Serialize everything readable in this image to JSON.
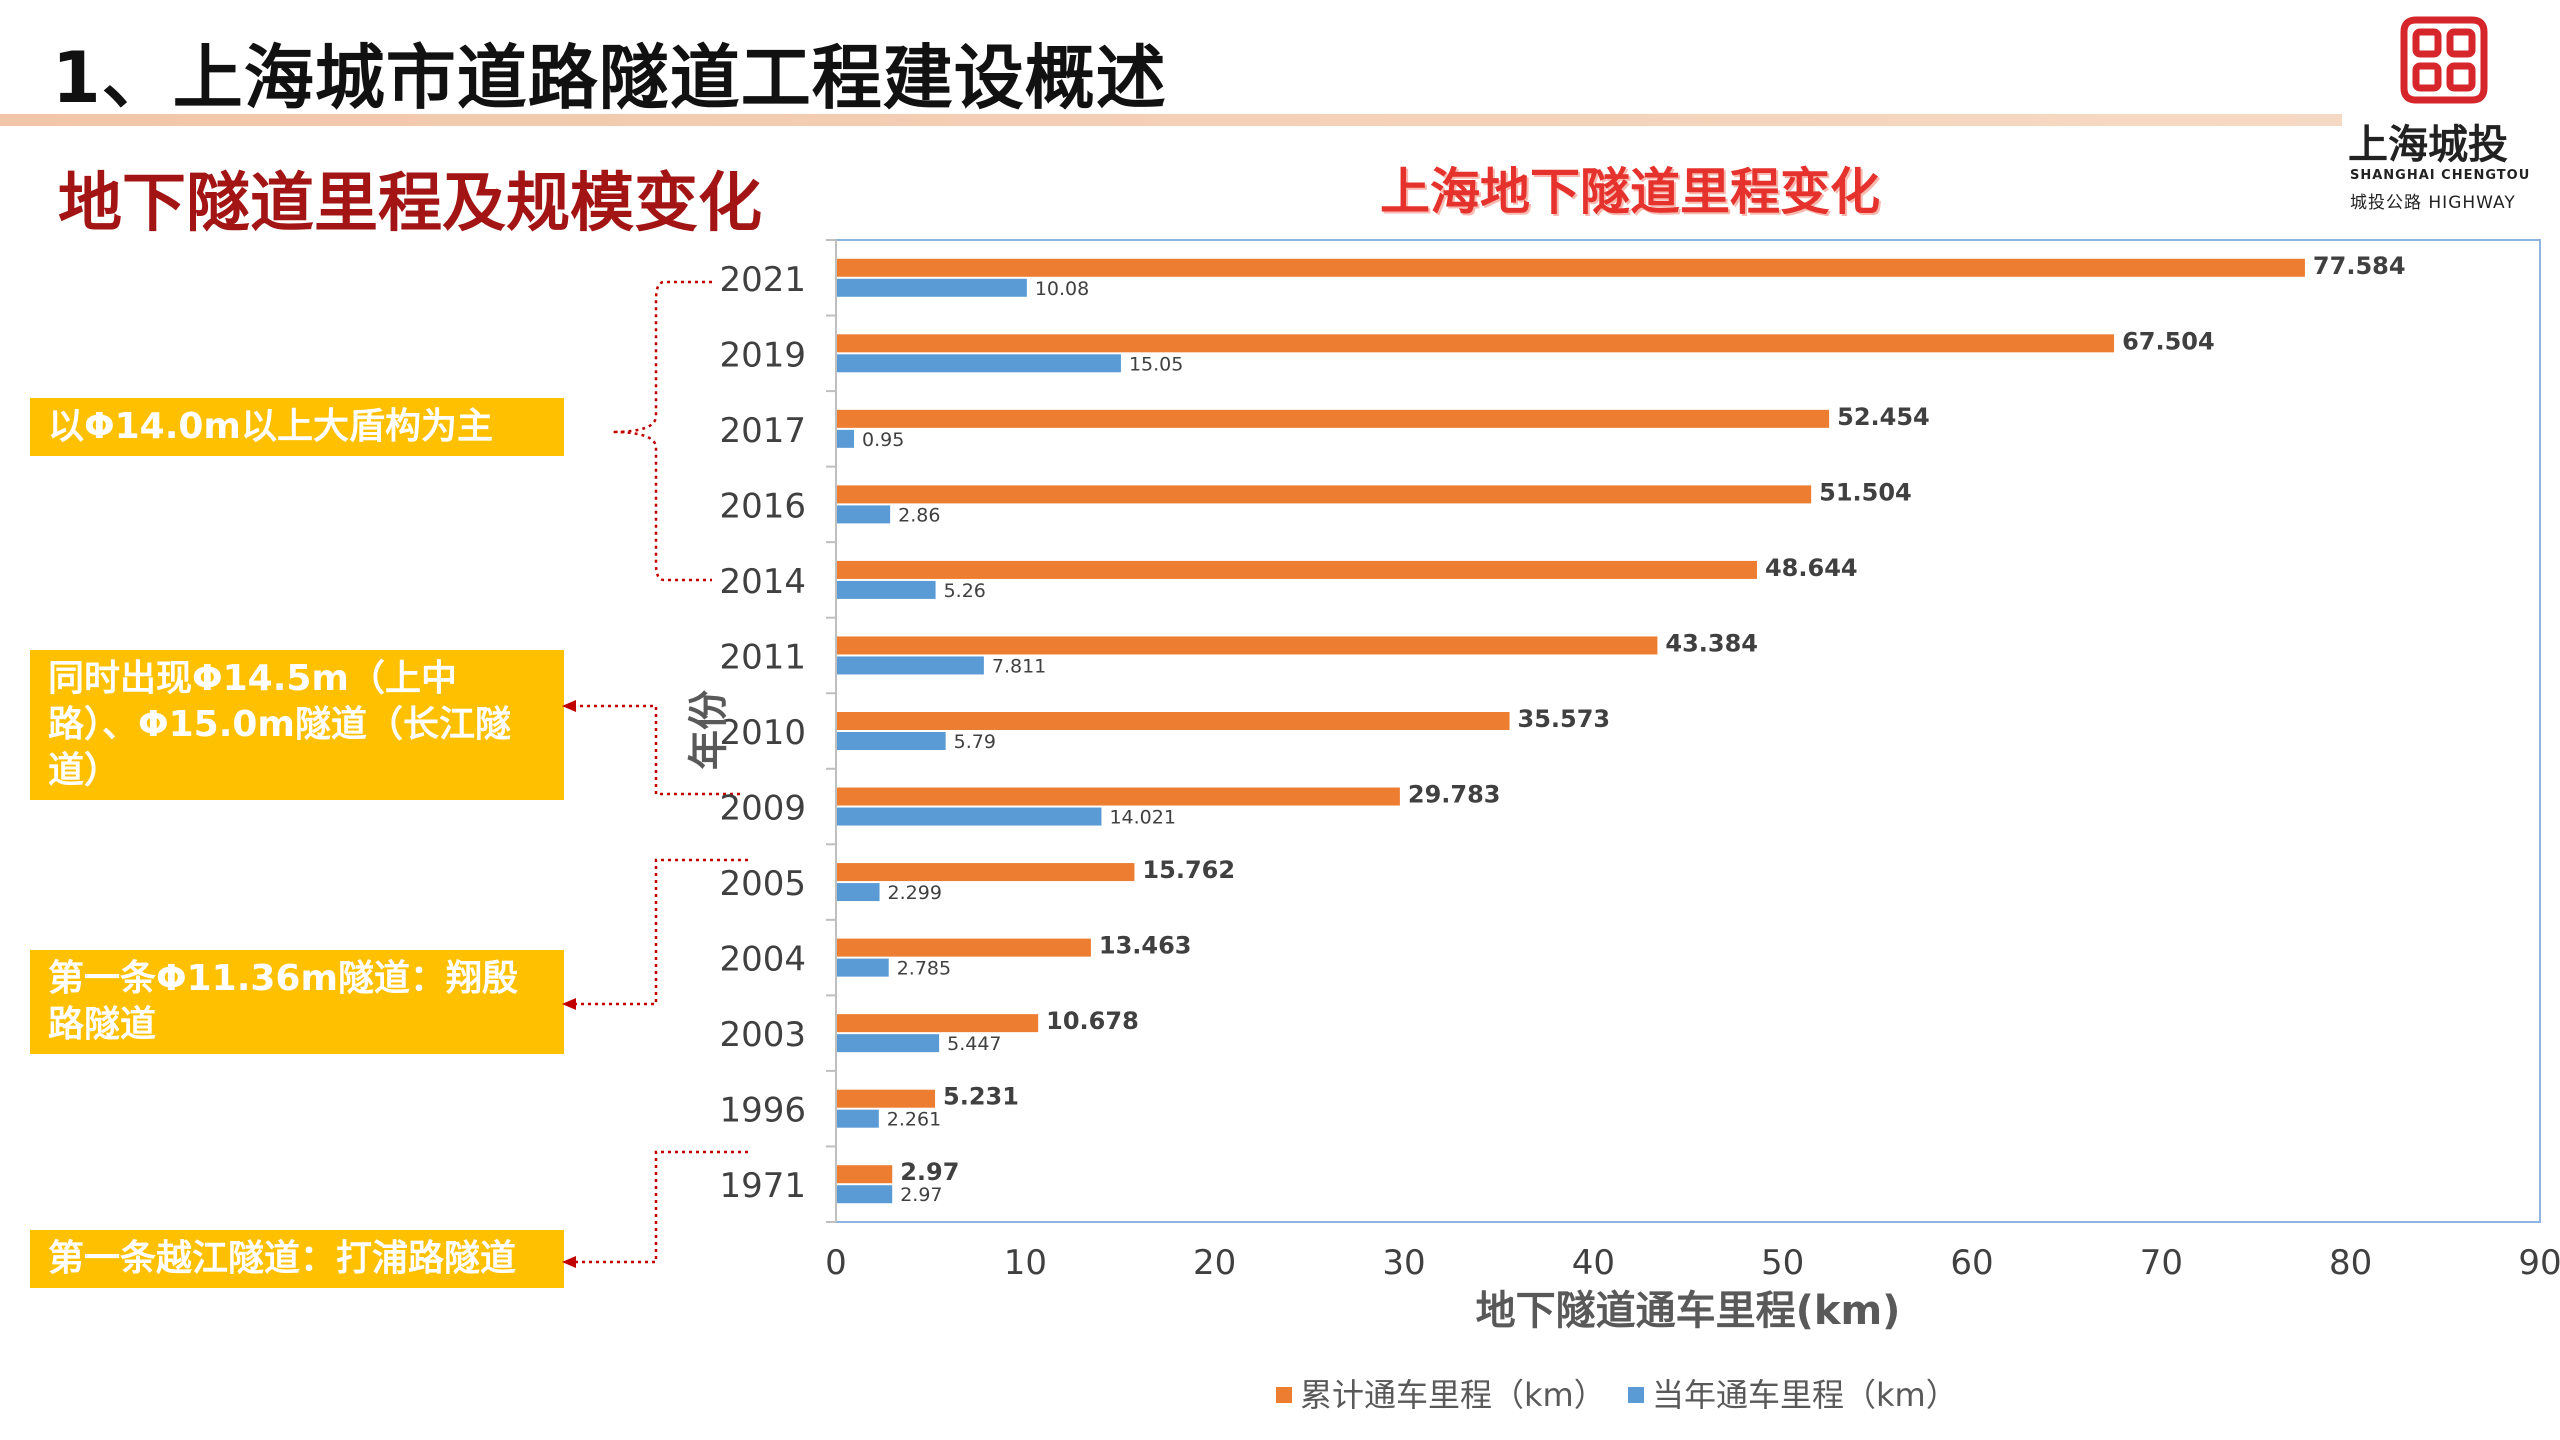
{
  "slide_title": "1、上海城市道路隧道工程建设概述",
  "section_title": "地下隧道里程及规模变化",
  "logo": {
    "name": "上海城投",
    "english": "SHANGHAI CHENGTOU",
    "sub": "城投公路 HIGHWAY",
    "icon": "chengtou-logo-icon",
    "color": "#d7262b"
  },
  "callouts": [
    {
      "text": "以Φ14.0m以上大盾构为主"
    },
    {
      "text": "同时出现Φ14.5m（上中路）、Φ15.0m隧道（长江隧道）"
    },
    {
      "text": "第一条Φ11.36m隧道：翔殷路隧道"
    },
    {
      "text": "第一条越江隧道：打浦路隧道"
    }
  ],
  "colors": {
    "cumulative": "#ed7d31",
    "annual": "#5b9bd5",
    "callout_bg": "#ffc000",
    "bracket": "#c00000",
    "section_title": "#a31515",
    "chart_title": "#e5322d"
  },
  "chart_data": {
    "type": "bar",
    "orientation": "horizontal",
    "title": "上海地下隧道里程变化",
    "xlabel": "地下隧道通车里程(km)",
    "ylabel": "年份",
    "xlim": [
      0,
      90
    ],
    "xticks": [
      0,
      10,
      20,
      30,
      40,
      50,
      60,
      70,
      80,
      90
    ],
    "categories": [
      "2021",
      "2019",
      "2017",
      "2016",
      "2014",
      "2011",
      "2010",
      "2009",
      "2005",
      "2004",
      "2003",
      "1996",
      "1971"
    ],
    "series": [
      {
        "name": "累计通车里程（km）",
        "color": "#ed7d31",
        "values": [
          77.584,
          67.504,
          52.454,
          51.504,
          48.644,
          43.384,
          35.573,
          29.783,
          15.762,
          13.463,
          10.678,
          5.231,
          2.97
        ],
        "labels": [
          "77.584",
          "67.504",
          "52.454",
          "51.504",
          "48.644",
          "43.384",
          "35.573",
          "29.783",
          "15.762",
          "13.463",
          "10.678",
          "5.231",
          "2.97"
        ]
      },
      {
        "name": "当年通车里程（km）",
        "color": "#5b9bd5",
        "values": [
          10.08,
          15.05,
          0.95,
          2.86,
          5.26,
          7.811,
          5.79,
          14.021,
          2.299,
          2.785,
          5.447,
          2.261,
          2.97
        ],
        "labels": [
          "10.08",
          "15.05",
          "0.95",
          "2.86",
          "5.26",
          "7.811",
          "5.79",
          "14.021",
          "2.299",
          "2.785",
          "5.447",
          "2.261",
          "2.97"
        ]
      }
    ],
    "legend_position": "bottom",
    "grid": false
  }
}
